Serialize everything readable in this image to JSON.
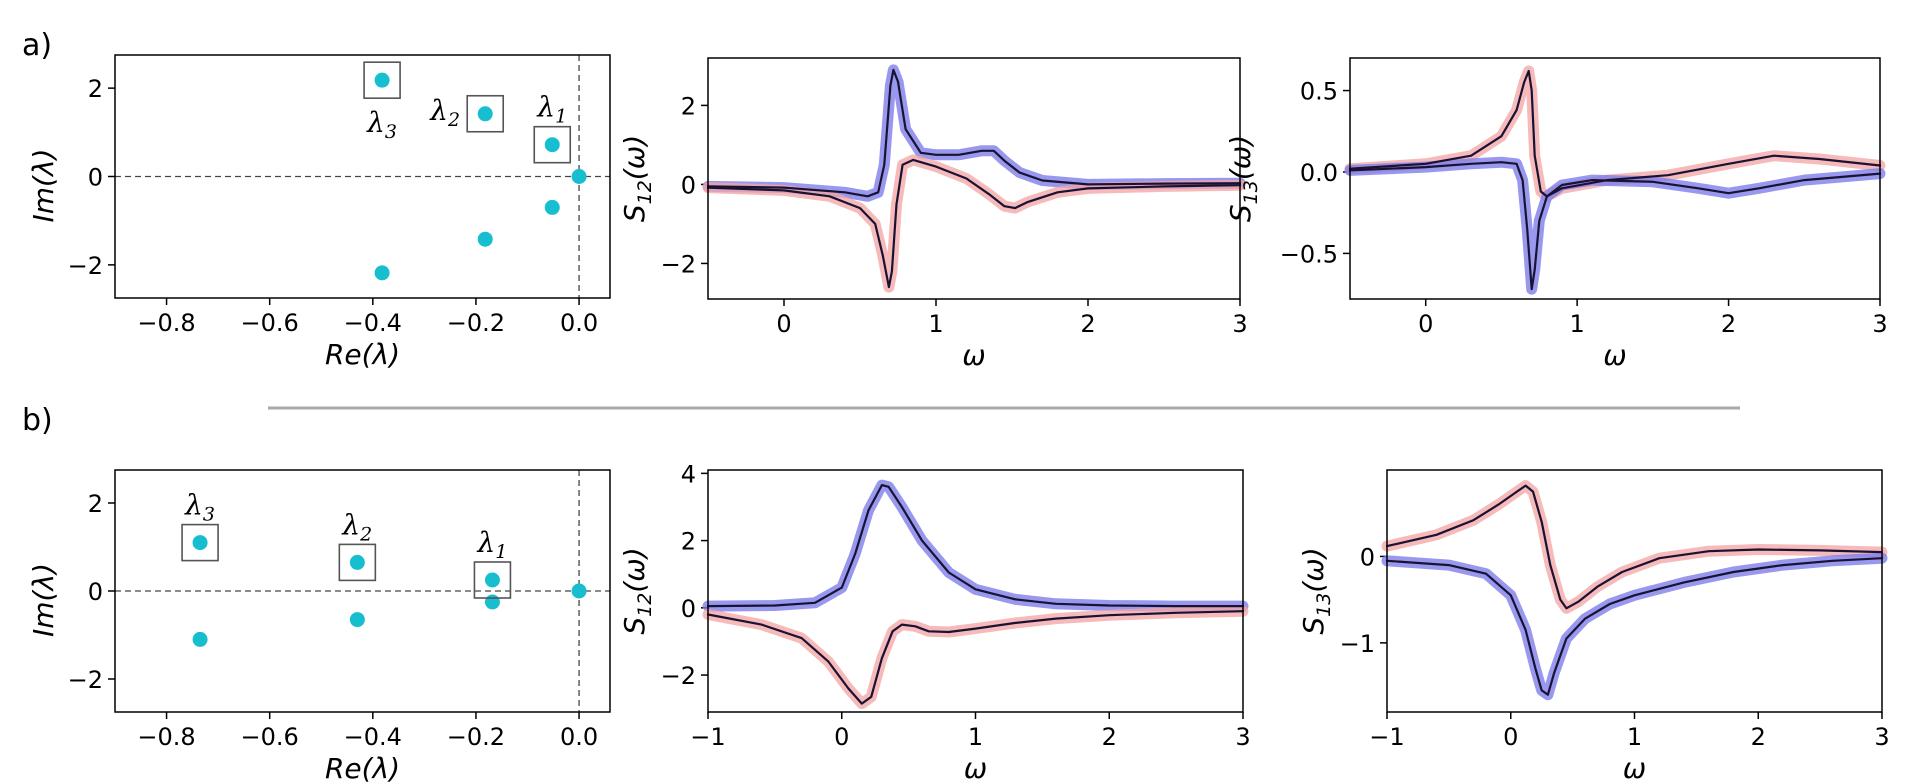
{
  "panel_labels": [
    "a)",
    "b)"
  ],
  "chart_data": [
    {
      "type": "scatter",
      "id": "a-eig",
      "xlabel": "Re(λ)",
      "ylabel": "Im(λ)",
      "xlim": [
        -0.9,
        0.06
      ],
      "ylim": [
        -2.75,
        2.75
      ],
      "xticks": [
        -0.8,
        -0.6,
        -0.4,
        -0.2,
        0.0
      ],
      "xtick_labels": [
        "−0.8",
        "−0.6",
        "−0.4",
        "−0.2",
        "0.0"
      ],
      "yticks": [
        -2,
        0,
        2
      ],
      "ytick_labels": [
        "−2",
        "0",
        "2"
      ],
      "marker_color": "#17becf",
      "points": [
        [
          0.0,
          0.0
        ],
        [
          -0.052,
          0.72
        ],
        [
          -0.052,
          -0.7
        ],
        [
          -0.182,
          1.42
        ],
        [
          -0.182,
          -1.42
        ],
        [
          -0.382,
          2.18
        ],
        [
          -0.382,
          -2.18
        ]
      ],
      "annotations": [
        {
          "name": "λ1",
          "sub": "1",
          "x": -0.052,
          "y": 0.72,
          "pos": "above"
        },
        {
          "name": "λ2",
          "sub": "2",
          "x": -0.182,
          "y": 1.42,
          "pos": "left"
        },
        {
          "name": "λ3",
          "sub": "3",
          "x": -0.382,
          "y": 2.18,
          "pos": "below"
        }
      ],
      "reference_lines": {
        "h": 0,
        "v": 0
      }
    },
    {
      "type": "line",
      "id": "a-s12",
      "xlabel": "ω",
      "ylabel": "S12(ω)",
      "ylabel_sub": "12",
      "xlim": [
        -0.5,
        3.0
      ],
      "ylim": [
        -2.9,
        3.2
      ],
      "xticks": [
        0,
        1,
        2,
        3
      ],
      "xtick_labels": [
        "0",
        "1",
        "2",
        "3"
      ],
      "yticks": [
        -2,
        0,
        2
      ],
      "ytick_labels": [
        "−2",
        "0",
        "2"
      ],
      "series": [
        {
          "color": "#7b7bea",
          "role": "data",
          "x": [
            -0.5,
            0.0,
            0.4,
            0.55,
            0.62,
            0.66,
            0.7,
            0.72,
            0.75,
            0.8,
            0.9,
            1.0,
            1.15,
            1.3,
            1.38,
            1.45,
            1.55,
            1.7,
            2.0,
            2.5,
            3.0
          ],
          "y": [
            -0.05,
            -0.08,
            -0.2,
            -0.3,
            -0.2,
            0.5,
            2.5,
            2.9,
            2.6,
            1.4,
            0.8,
            0.75,
            0.75,
            0.85,
            0.85,
            0.6,
            0.3,
            0.1,
            0.0,
            0.02,
            0.03
          ]
        },
        {
          "color": "#f4a6a6",
          "role": "data",
          "x": [
            -0.5,
            0.0,
            0.3,
            0.5,
            0.6,
            0.65,
            0.69,
            0.71,
            0.74,
            0.78,
            0.85,
            1.0,
            1.2,
            1.35,
            1.45,
            1.52,
            1.6,
            1.8,
            2.0,
            2.5,
            3.0
          ],
          "y": [
            -0.08,
            -0.15,
            -0.3,
            -0.6,
            -1.0,
            -1.8,
            -2.6,
            -2.2,
            -0.5,
            0.5,
            0.62,
            0.45,
            0.15,
            -0.25,
            -0.55,
            -0.6,
            -0.45,
            -0.2,
            -0.1,
            -0.05,
            -0.02
          ]
        },
        {
          "color": "#1a1233",
          "role": "fit",
          "x": [
            -0.5,
            0.0,
            0.4,
            0.55,
            0.62,
            0.66,
            0.7,
            0.72,
            0.75,
            0.8,
            0.9,
            1.0,
            1.15,
            1.3,
            1.38,
            1.45,
            1.55,
            1.7,
            2.0,
            2.5,
            3.0
          ],
          "y": [
            -0.05,
            -0.08,
            -0.2,
            -0.3,
            -0.2,
            0.5,
            2.5,
            2.9,
            2.6,
            1.4,
            0.8,
            0.75,
            0.75,
            0.85,
            0.85,
            0.6,
            0.3,
            0.1,
            0.0,
            0.02,
            0.03
          ]
        },
        {
          "color": "#1a1233",
          "role": "fit",
          "x": [
            -0.5,
            0.0,
            0.3,
            0.5,
            0.6,
            0.65,
            0.69,
            0.71,
            0.74,
            0.78,
            0.85,
            1.0,
            1.2,
            1.35,
            1.45,
            1.52,
            1.6,
            1.8,
            2.0,
            2.5,
            3.0
          ],
          "y": [
            -0.08,
            -0.15,
            -0.3,
            -0.6,
            -1.0,
            -1.8,
            -2.6,
            -2.2,
            -0.5,
            0.5,
            0.62,
            0.45,
            0.15,
            -0.25,
            -0.55,
            -0.6,
            -0.45,
            -0.2,
            -0.1,
            -0.05,
            -0.02
          ]
        }
      ]
    },
    {
      "type": "line",
      "id": "a-s13",
      "xlabel": "ω",
      "ylabel": "S13(ω)",
      "ylabel_sub": "13",
      "xlim": [
        -0.5,
        3.0
      ],
      "ylim": [
        -0.78,
        0.7
      ],
      "xticks": [
        0,
        1,
        2,
        3
      ],
      "xtick_labels": [
        "0",
        "1",
        "2",
        "3"
      ],
      "yticks": [
        -0.5,
        0.0,
        0.5
      ],
      "ytick_labels": [
        "−0.5",
        "0.0",
        "0.5"
      ],
      "series": [
        {
          "color": "#f4a6a6",
          "role": "data",
          "x": [
            -0.5,
            0.0,
            0.3,
            0.5,
            0.6,
            0.65,
            0.68,
            0.7,
            0.72,
            0.76,
            0.8,
            0.9,
            1.2,
            1.6,
            2.0,
            2.3,
            2.6,
            3.0
          ],
          "y": [
            0.02,
            0.05,
            0.1,
            0.22,
            0.38,
            0.55,
            0.62,
            0.5,
            0.1,
            -0.12,
            -0.15,
            -0.1,
            -0.05,
            -0.02,
            0.05,
            0.1,
            0.08,
            0.04
          ]
        },
        {
          "color": "#7b7bea",
          "role": "data",
          "x": [
            -0.5,
            0.0,
            0.3,
            0.5,
            0.6,
            0.64,
            0.67,
            0.7,
            0.72,
            0.75,
            0.8,
            0.9,
            1.1,
            1.5,
            1.8,
            2.0,
            2.2,
            2.5,
            3.0
          ],
          "y": [
            0.01,
            0.03,
            0.05,
            0.06,
            0.05,
            -0.05,
            -0.35,
            -0.72,
            -0.6,
            -0.3,
            -0.15,
            -0.08,
            -0.05,
            -0.06,
            -0.1,
            -0.13,
            -0.1,
            -0.05,
            -0.01
          ]
        },
        {
          "color": "#1a1233",
          "role": "fit",
          "x": [
            -0.5,
            0.0,
            0.3,
            0.5,
            0.6,
            0.65,
            0.68,
            0.7,
            0.72,
            0.76,
            0.8,
            0.9,
            1.2,
            1.6,
            2.0,
            2.3,
            2.6,
            3.0
          ],
          "y": [
            0.02,
            0.05,
            0.1,
            0.22,
            0.38,
            0.55,
            0.62,
            0.5,
            0.1,
            -0.12,
            -0.15,
            -0.1,
            -0.05,
            -0.02,
            0.05,
            0.1,
            0.08,
            0.04
          ]
        },
        {
          "color": "#1a1233",
          "role": "fit",
          "x": [
            -0.5,
            0.0,
            0.3,
            0.5,
            0.6,
            0.64,
            0.67,
            0.7,
            0.72,
            0.75,
            0.8,
            0.9,
            1.1,
            1.5,
            1.8,
            2.0,
            2.2,
            2.5,
            3.0
          ],
          "y": [
            0.01,
            0.03,
            0.05,
            0.06,
            0.05,
            -0.05,
            -0.35,
            -0.72,
            -0.6,
            -0.3,
            -0.15,
            -0.08,
            -0.05,
            -0.06,
            -0.1,
            -0.13,
            -0.1,
            -0.05,
            -0.01
          ]
        }
      ]
    },
    {
      "type": "scatter",
      "id": "b-eig",
      "xlabel": "Re(λ)",
      "ylabel": "Im(λ)",
      "xlim": [
        -0.9,
        0.06
      ],
      "ylim": [
        -2.75,
        2.75
      ],
      "xticks": [
        -0.8,
        -0.6,
        -0.4,
        -0.2,
        0.0
      ],
      "xtick_labels": [
        "−0.8",
        "−0.6",
        "−0.4",
        "−0.2",
        "0.0"
      ],
      "yticks": [
        -2,
        0,
        2
      ],
      "ytick_labels": [
        "−2",
        "0",
        "2"
      ],
      "marker_color": "#17becf",
      "points": [
        [
          0.0,
          0.0
        ],
        [
          -0.168,
          0.25
        ],
        [
          -0.168,
          -0.25
        ],
        [
          -0.43,
          0.65
        ],
        [
          -0.43,
          -0.65
        ],
        [
          -0.735,
          1.1
        ],
        [
          -0.735,
          -1.1
        ]
      ],
      "annotations": [
        {
          "name": "λ1",
          "sub": "1",
          "x": -0.168,
          "y": 0.25,
          "pos": "above"
        },
        {
          "name": "λ2",
          "sub": "2",
          "x": -0.43,
          "y": 0.65,
          "pos": "above"
        },
        {
          "name": "λ3",
          "sub": "3",
          "x": -0.735,
          "y": 1.1,
          "pos": "above"
        }
      ],
      "reference_lines": {
        "h": 0,
        "v": 0
      }
    },
    {
      "type": "line",
      "id": "b-s12",
      "xlabel": "ω",
      "ylabel": "S12(ω)",
      "ylabel_sub": "12",
      "xlim": [
        -1.0,
        3.0
      ],
      "ylim": [
        -3.1,
        4.1
      ],
      "xticks": [
        -1,
        0,
        1,
        2,
        3
      ],
      "xtick_labels": [
        "−1",
        "0",
        "1",
        "2",
        "3"
      ],
      "yticks": [
        -2,
        0,
        2,
        4
      ],
      "ytick_labels": [
        "−2",
        "0",
        "2",
        "4"
      ],
      "series": [
        {
          "color": "#7b7bea",
          "role": "data",
          "x": [
            -1.0,
            -0.5,
            -0.2,
            0.0,
            0.1,
            0.2,
            0.3,
            0.35,
            0.45,
            0.6,
            0.8,
            1.0,
            1.3,
            1.6,
            2.0,
            2.5,
            3.0
          ],
          "y": [
            0.05,
            0.07,
            0.15,
            0.6,
            1.6,
            2.9,
            3.65,
            3.6,
            3.0,
            2.0,
            1.05,
            0.55,
            0.25,
            0.12,
            0.07,
            0.05,
            0.05
          ]
        },
        {
          "color": "#f4a6a6",
          "role": "data",
          "x": [
            -1.0,
            -0.6,
            -0.3,
            -0.1,
            0.05,
            0.15,
            0.22,
            0.3,
            0.38,
            0.45,
            0.55,
            0.65,
            0.8,
            1.0,
            1.3,
            1.6,
            2.0,
            2.5,
            3.0
          ],
          "y": [
            -0.2,
            -0.5,
            -0.9,
            -1.6,
            -2.4,
            -2.85,
            -2.65,
            -1.5,
            -0.7,
            -0.5,
            -0.55,
            -0.7,
            -0.72,
            -0.62,
            -0.45,
            -0.32,
            -0.22,
            -0.15,
            -0.1
          ]
        },
        {
          "color": "#1a1233",
          "role": "fit",
          "x": [
            -1.0,
            -0.5,
            -0.2,
            0.0,
            0.1,
            0.2,
            0.3,
            0.35,
            0.45,
            0.6,
            0.8,
            1.0,
            1.3,
            1.6,
            2.0,
            2.5,
            3.0
          ],
          "y": [
            0.05,
            0.07,
            0.15,
            0.6,
            1.6,
            2.9,
            3.65,
            3.6,
            3.0,
            2.0,
            1.05,
            0.55,
            0.25,
            0.12,
            0.07,
            0.05,
            0.05
          ]
        },
        {
          "color": "#1a1233",
          "role": "fit",
          "x": [
            -1.0,
            -0.6,
            -0.3,
            -0.1,
            0.05,
            0.15,
            0.22,
            0.3,
            0.38,
            0.45,
            0.55,
            0.65,
            0.8,
            1.0,
            1.3,
            1.6,
            2.0,
            2.5,
            3.0
          ],
          "y": [
            -0.2,
            -0.5,
            -0.9,
            -1.6,
            -2.4,
            -2.85,
            -2.65,
            -1.5,
            -0.7,
            -0.5,
            -0.55,
            -0.7,
            -0.72,
            -0.62,
            -0.45,
            -0.32,
            -0.22,
            -0.15,
            -0.1
          ]
        }
      ]
    },
    {
      "type": "line",
      "id": "b-s13",
      "xlabel": "ω",
      "ylabel": "S13(ω)",
      "ylabel_sub": "13",
      "xlim": [
        -1.0,
        3.0
      ],
      "ylim": [
        -1.8,
        1.0
      ],
      "xticks": [
        -1,
        0,
        1,
        2,
        3
      ],
      "xtick_labels": [
        "−1",
        "0",
        "1",
        "2",
        "3"
      ],
      "yticks": [
        -1,
        0
      ],
      "ytick_labels": [
        "−1",
        "0"
      ],
      "series": [
        {
          "color": "#f4a6a6",
          "role": "data",
          "x": [
            -1.0,
            -0.6,
            -0.3,
            -0.1,
            0.05,
            0.12,
            0.18,
            0.25,
            0.32,
            0.4,
            0.45,
            0.55,
            0.7,
            0.9,
            1.2,
            1.6,
            2.0,
            2.5,
            3.0
          ],
          "y": [
            0.12,
            0.25,
            0.42,
            0.6,
            0.75,
            0.82,
            0.75,
            0.4,
            -0.1,
            -0.5,
            -0.6,
            -0.52,
            -0.35,
            -0.18,
            -0.02,
            0.06,
            0.08,
            0.07,
            0.05
          ]
        },
        {
          "color": "#7b7bea",
          "role": "data",
          "x": [
            -1.0,
            -0.5,
            -0.2,
            0.0,
            0.12,
            0.2,
            0.25,
            0.3,
            0.35,
            0.45,
            0.6,
            0.8,
            1.0,
            1.4,
            1.8,
            2.2,
            2.6,
            3.0
          ],
          "y": [
            -0.05,
            -0.1,
            -0.2,
            -0.45,
            -0.85,
            -1.3,
            -1.55,
            -1.6,
            -1.35,
            -0.95,
            -0.72,
            -0.55,
            -0.45,
            -0.3,
            -0.18,
            -0.1,
            -0.05,
            -0.02
          ]
        },
        {
          "color": "#1a1233",
          "role": "fit",
          "x": [
            -1.0,
            -0.6,
            -0.3,
            -0.1,
            0.05,
            0.12,
            0.18,
            0.25,
            0.32,
            0.4,
            0.45,
            0.55,
            0.7,
            0.9,
            1.2,
            1.6,
            2.0,
            2.5,
            3.0
          ],
          "y": [
            0.12,
            0.25,
            0.42,
            0.6,
            0.75,
            0.82,
            0.75,
            0.4,
            -0.1,
            -0.5,
            -0.6,
            -0.52,
            -0.35,
            -0.18,
            -0.02,
            0.06,
            0.08,
            0.07,
            0.05
          ]
        },
        {
          "color": "#1a1233",
          "role": "fit",
          "x": [
            -1.0,
            -0.5,
            -0.2,
            0.0,
            0.12,
            0.2,
            0.25,
            0.3,
            0.35,
            0.45,
            0.6,
            0.8,
            1.0,
            1.4,
            1.8,
            2.2,
            2.6,
            3.0
          ],
          "y": [
            -0.05,
            -0.1,
            -0.2,
            -0.45,
            -0.85,
            -1.3,
            -1.55,
            -1.6,
            -1.35,
            -0.95,
            -0.72,
            -0.55,
            -0.45,
            -0.3,
            -0.18,
            -0.1,
            -0.05,
            -0.02
          ]
        }
      ]
    }
  ]
}
